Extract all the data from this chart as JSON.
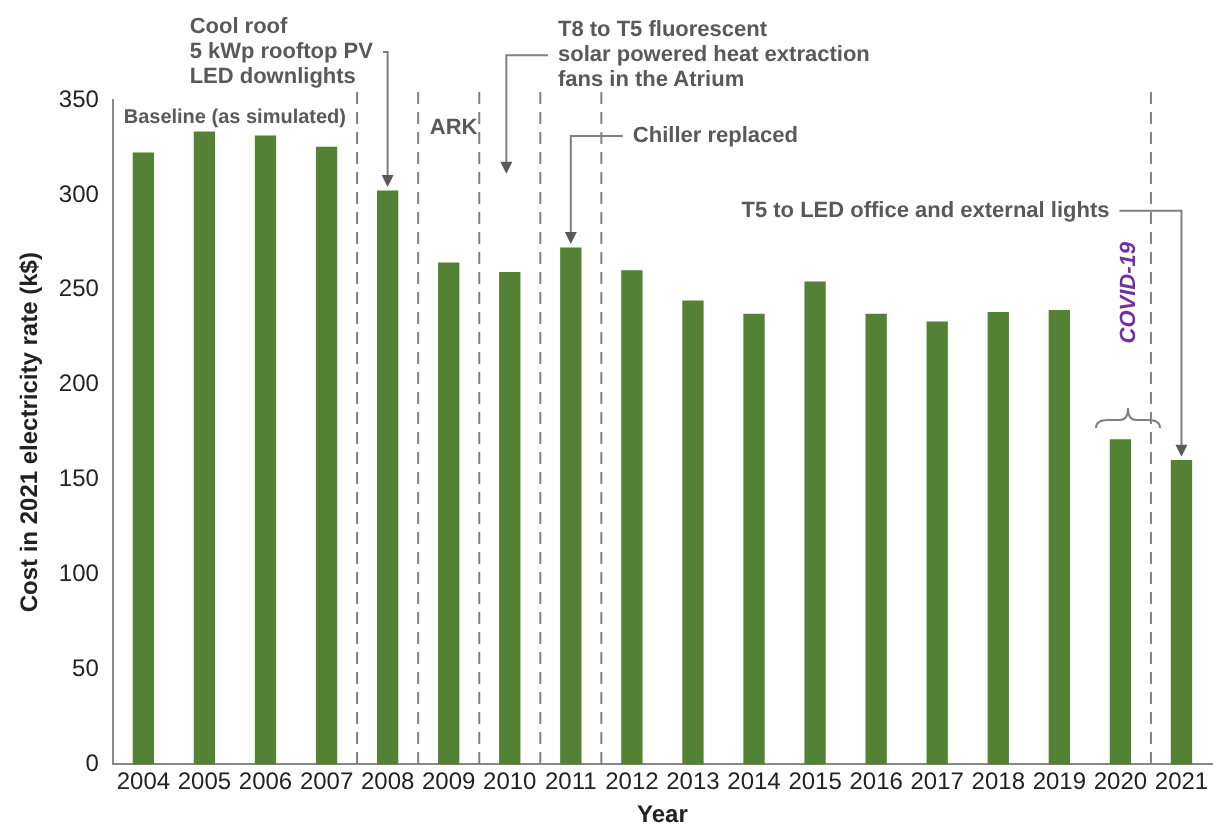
{
  "chart_data": {
    "type": "bar",
    "xlabel": "Year",
    "ylabel": "Cost in 2021 electricity rate (k$)",
    "x": [
      2004,
      2005,
      2006,
      2007,
      2008,
      2009,
      2010,
      2011,
      2012,
      2013,
      2014,
      2015,
      2016,
      2017,
      2018,
      2019,
      2020,
      2021
    ],
    "values": [
      322,
      333,
      331,
      325,
      302,
      264,
      259,
      272,
      260,
      244,
      237,
      254,
      237,
      233,
      238,
      239,
      171,
      160
    ],
    "color": "#548235",
    "xlim": [
      2003.5,
      2021.5
    ],
    "xticks": [
      2004,
      2005,
      2006,
      2007,
      2008,
      2009,
      2010,
      2011,
      2012,
      2013,
      2014,
      2015,
      2016,
      2017,
      2018,
      2019,
      2020,
      2021
    ],
    "ylim": [
      0,
      350
    ],
    "yticks": [
      0,
      50,
      100,
      150,
      200,
      250,
      300,
      350
    ],
    "grid": false,
    "legend": false,
    "ref_lines": [
      {
        "axis": "x",
        "value": 2007.5,
        "color": "#808080",
        "line_style": "dashed"
      },
      {
        "axis": "x",
        "value": 2008.5,
        "color": "#808080",
        "line_style": "dashed"
      },
      {
        "axis": "x",
        "value": 2009.5,
        "color": "#808080",
        "line_style": "dashed"
      },
      {
        "axis": "x",
        "value": 2010.5,
        "color": "#808080",
        "line_style": "dashed"
      },
      {
        "axis": "x",
        "value": 2011.5,
        "color": "#808080",
        "line_style": "dashed"
      },
      {
        "axis": "x",
        "value": 2020.5,
        "color": "#808080",
        "line_style": "dashed"
      }
    ],
    "annotations": [
      "Baseline (as simulated)",
      "ARK",
      {
        "text": "Cool roof\n5 kWp rooftop PV\nLED downlights",
        "x": 2008,
        "y": 302
      },
      "T8 to T5 fluorescent\nsolar powered heat extraction\nfans in the Atrium",
      {
        "text": "Chiller replaced",
        "x": 2011,
        "y": 272
      },
      {
        "text": "T5 to LED office and external lights",
        "x": 2021,
        "y": 160
      },
      "COVID-19"
    ]
  }
}
